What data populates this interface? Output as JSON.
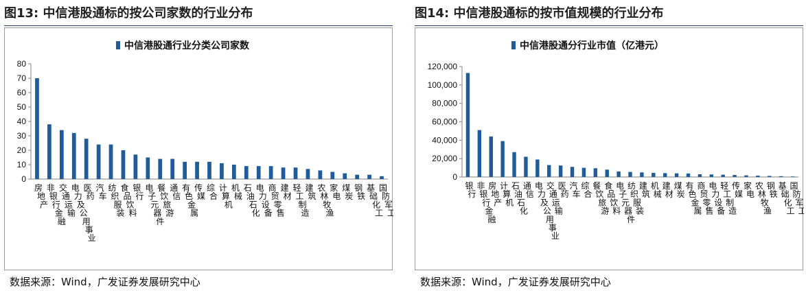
{
  "colors": {
    "bar": "#1f5c99",
    "title_rule": "#1f3864",
    "axis": "#808080"
  },
  "panels": [
    {
      "figure_label": "图13:",
      "figure_title": "中信港股通标的按公司家数的行业分布",
      "source": "数据来源：Wind，广发证券发展研究中心"
    },
    {
      "figure_label": "图14:",
      "figure_title": "中信港股通标的按市值规模的行业分布",
      "source": "数据来源：Wind，广发证券发展研究中心"
    }
  ],
  "chart_data": [
    {
      "type": "bar",
      "legend": "中信港股通行业分类公司家数",
      "legend_position": "top",
      "grid": false,
      "ylim": [
        0,
        80
      ],
      "yticks": [
        0,
        10,
        20,
        30,
        40,
        50,
        60,
        70,
        80
      ],
      "ytick_labels": [
        "0",
        "10",
        "20",
        "30",
        "40",
        "50",
        "60",
        "70",
        "80"
      ],
      "categories": [
        "房地产",
        "非银行金融",
        "交通运输",
        "电力及公用事业",
        "医药",
        "汽车",
        "纺织服装",
        "食品饮料",
        "银行",
        "电子元器件",
        "餐饮旅游",
        "通信",
        "有色金属",
        "传媒",
        "综合",
        "计算机",
        "机械",
        "石油石化",
        "电力设备",
        "商贸零售",
        "建材",
        "轻工制造",
        "建筑",
        "农林牧渔",
        "家电",
        "煤炭",
        "钢铁",
        "基础化工",
        "国防军工"
      ],
      "values": [
        70,
        38,
        34,
        32,
        28,
        24,
        24,
        20,
        17,
        15,
        14,
        14,
        12,
        12,
        12,
        11,
        10,
        9,
        9,
        9,
        8,
        8,
        7,
        6,
        5,
        4,
        3,
        3,
        2
      ]
    },
    {
      "type": "bar",
      "legend": "中信港股通分行业市值（亿港元）",
      "legend_position": "top",
      "grid": false,
      "ylim": [
        0,
        120000
      ],
      "yticks": [
        0,
        20000,
        40000,
        60000,
        80000,
        100000,
        120000
      ],
      "ytick_labels": [
        "0",
        "20,000",
        "40,000",
        "60,000",
        "80,000",
        "100,000",
        "120,000"
      ],
      "categories": [
        "银行",
        "非银行金融",
        "房地产",
        "计算机",
        "石油石化",
        "通信",
        "电力及公用事业",
        "交通运输",
        "医药",
        "汽车",
        "综合",
        "餐饮旅游",
        "食品饮料",
        "电子元器件",
        "纺织服装",
        "建筑",
        "机械",
        "建材",
        "煤炭",
        "有色金属",
        "商贸零售",
        "电力设备",
        "轻工制造",
        "传媒",
        "家电",
        "农林牧渔",
        "钢铁",
        "基础化工",
        "国防军工"
      ],
      "values": [
        113000,
        51000,
        44000,
        39000,
        27000,
        22000,
        19000,
        13000,
        12500,
        11000,
        10000,
        9500,
        8000,
        6000,
        5500,
        5000,
        4500,
        4200,
        4000,
        3800,
        3000,
        2800,
        2500,
        2200,
        1800,
        1500,
        1200,
        900,
        600
      ]
    }
  ]
}
